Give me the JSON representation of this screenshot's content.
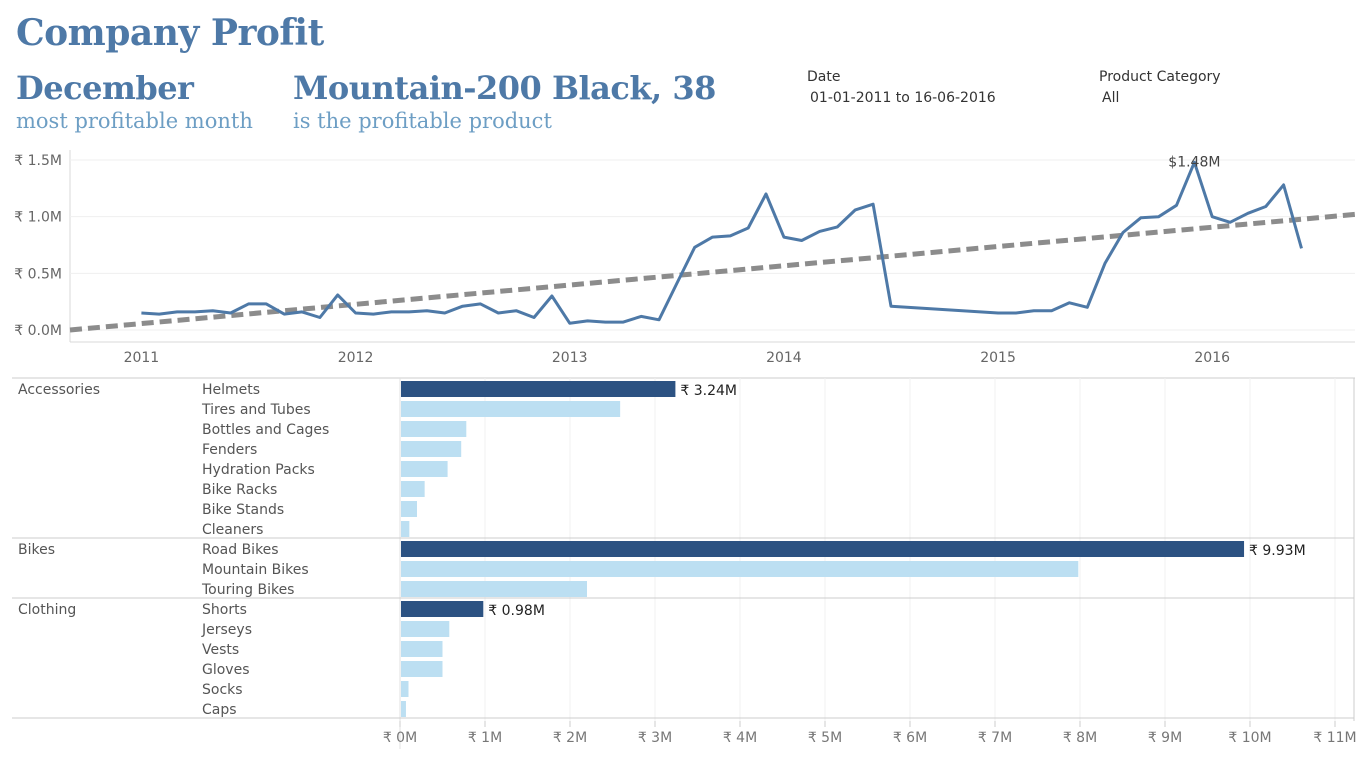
{
  "header": {
    "title": "Company Profit",
    "kpi_month": {
      "value": "December",
      "caption": "most profitable month"
    },
    "kpi_product": {
      "value": "Mountain-200 Black, 38",
      "caption": "is the profitable product"
    }
  },
  "filters": [
    {
      "label": "Date",
      "value": "01-01-2011 to 16-06-2016"
    },
    {
      "label": "Product Category",
      "value": "All"
    }
  ],
  "colors": {
    "line": "#4e79a7",
    "trend": "#8c8c8c",
    "bar_top": "#2c5282",
    "bar_other": "#bcdff2",
    "title": "#4e79a7"
  },
  "chart_data": [
    {
      "type": "line",
      "title": "",
      "xlabel": "",
      "ylabel": "",
      "x_ticks": [
        "2011",
        "2012",
        "2013",
        "2014",
        "2015",
        "2016"
      ],
      "y_ticks": [
        "₹ 0.0M",
        "₹ 0.5M",
        "₹ 1.0M",
        "₹ 1.5M"
      ],
      "ylim": [
        -0.1,
        1.6
      ],
      "xlim": [
        "2010-09",
        "2016-09"
      ],
      "series": [
        {
          "x": [
            "2011-01",
            "2011-02",
            "2011-03",
            "2011-04",
            "2011-05",
            "2011-06",
            "2011-07",
            "2011-08",
            "2011-09",
            "2011-10",
            "2011-11",
            "2011-12",
            "2012-01",
            "2012-02",
            "2012-03",
            "2012-04",
            "2012-05",
            "2012-06",
            "2012-07",
            "2012-08",
            "2012-09",
            "2012-10",
            "2012-11",
            "2012-12",
            "2013-01",
            "2013-02",
            "2013-03",
            "2013-04",
            "2013-05",
            "2013-06",
            "2013-07",
            "2013-08",
            "2013-09",
            "2013-10",
            "2013-11",
            "2013-12",
            "2014-01",
            "2014-02",
            "2014-03",
            "2014-04",
            "2014-05",
            "2014-06",
            "2014-07",
            "2015-01",
            "2015-02",
            "2015-03",
            "2015-04",
            "2015-05",
            "2015-06",
            "2015-07",
            "2015-08",
            "2015-09",
            "2015-10",
            "2015-11",
            "2015-12",
            "2016-01",
            "2016-02",
            "2016-03",
            "2016-04",
            "2016-05",
            "2016-06"
          ],
          "values": [
            0.15,
            0.14,
            0.16,
            0.16,
            0.17,
            0.15,
            0.23,
            0.23,
            0.14,
            0.16,
            0.11,
            0.31,
            0.15,
            0.14,
            0.16,
            0.16,
            0.17,
            0.15,
            0.21,
            0.23,
            0.15,
            0.17,
            0.11,
            0.3,
            0.06,
            0.08,
            0.07,
            0.07,
            0.12,
            0.09,
            0.41,
            0.73,
            0.82,
            0.83,
            0.9,
            1.2,
            0.82,
            0.79,
            0.87,
            0.91,
            1.06,
            1.11,
            0.21,
            0.15,
            0.15,
            0.17,
            0.17,
            0.24,
            0.2,
            0.59,
            0.86,
            0.99,
            1.0,
            1.1,
            1.48,
            1.0,
            0.95,
            1.03,
            1.09,
            1.28,
            0.72
          ]
        }
      ],
      "trendline": {
        "style": "dashed",
        "start": [
          "2010-09",
          0.0
        ],
        "end": [
          "2016-09",
          1.02
        ]
      },
      "annotation": {
        "label": "December 2015",
        "value": "$1.48M",
        "x": "2015-12",
        "y": 1.48
      }
    },
    {
      "type": "bar",
      "orientation": "horizontal",
      "title": "",
      "x_ticks": [
        "₹ 0M",
        "₹ 1M",
        "₹ 2M",
        "₹ 3M",
        "₹ 4M",
        "₹ 5M",
        "₹ 6M",
        "₹ 7M",
        "₹ 8M",
        "₹ 9M",
        "₹ 10M",
        "₹ 11M"
      ],
      "xlim": [
        0,
        11.2
      ],
      "groups": [
        {
          "category": "Accessories",
          "items": [
            {
              "name": "Helmets",
              "value": 3.24,
              "label": "₹ 3.24M",
              "top": true
            },
            {
              "name": "Tires and Tubes",
              "value": 2.59
            },
            {
              "name": "Bottles and Cages",
              "value": 0.78
            },
            {
              "name": "Fenders",
              "value": 0.72
            },
            {
              "name": "Hydration Packs",
              "value": 0.56
            },
            {
              "name": "Bike Racks",
              "value": 0.29
            },
            {
              "name": "Bike Stands",
              "value": 0.2
            },
            {
              "name": "Cleaners",
              "value": 0.11
            }
          ]
        },
        {
          "category": "Bikes",
          "items": [
            {
              "name": "Road Bikes",
              "value": 9.93,
              "label": "₹ 9.93M",
              "top": true
            },
            {
              "name": "Mountain Bikes",
              "value": 7.98
            },
            {
              "name": "Touring Bikes",
              "value": 2.2
            }
          ]
        },
        {
          "category": "Clothing",
          "items": [
            {
              "name": "Shorts",
              "value": 0.98,
              "label": "₹ 0.98M",
              "top": true
            },
            {
              "name": "Jerseys",
              "value": 0.58
            },
            {
              "name": "Vests",
              "value": 0.5
            },
            {
              "name": "Gloves",
              "value": 0.5
            },
            {
              "name": "Socks",
              "value": 0.1
            },
            {
              "name": "Caps",
              "value": 0.07
            }
          ]
        }
      ]
    }
  ]
}
